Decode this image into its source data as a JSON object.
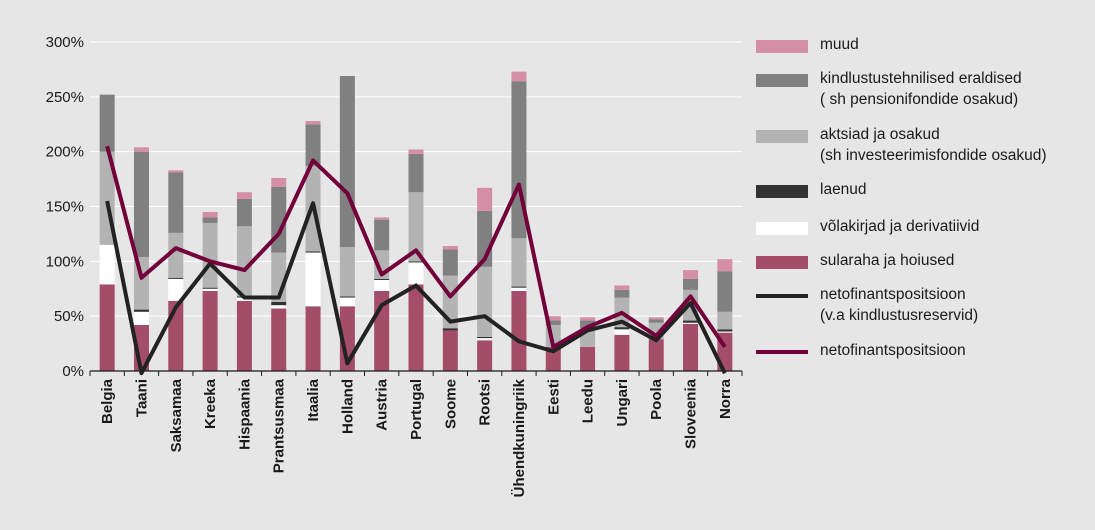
{
  "chart_data": {
    "type": "bar",
    "stacked": true,
    "categories": [
      "Belgia",
      "Taani",
      "Saksamaa",
      "Kreeka",
      "Hispaania",
      "Prantsusmaa",
      "Itaalia",
      "Holland",
      "Austria",
      "Portugal",
      "Soome",
      "Rootsi",
      "Ühendkuningriik",
      "Eesti",
      "Leedu",
      "Ungari",
      "Poola",
      "Sloveenia",
      "Norra"
    ],
    "ylim": [
      0,
      300
    ],
    "yticks": [
      0,
      50,
      100,
      150,
      200,
      250,
      300
    ],
    "ytick_labels": [
      "0%",
      "50%",
      "100%",
      "150%",
      "200%",
      "250%",
      "300%"
    ],
    "grid": true,
    "legend_position": "right",
    "series": [
      {
        "name": "sularaha ja hoiused",
        "color": "#a34d68",
        "values": [
          79,
          42,
          64,
          73,
          64,
          57,
          59,
          59,
          73,
          79,
          37,
          28,
          73,
          22,
          22,
          33,
          29,
          43,
          35
        ]
      },
      {
        "name": "võlakirjad ja derivatiivid",
        "color": "#ffffff",
        "values": [
          36,
          12,
          20,
          2,
          3,
          3,
          49,
          8,
          10,
          20,
          0,
          2,
          3,
          0,
          0,
          5,
          0,
          1,
          1
        ]
      },
      {
        "name": "laenud",
        "color": "#333333",
        "values": [
          0,
          2,
          1,
          1,
          1,
          3,
          1,
          1,
          1,
          1,
          2,
          1,
          1,
          0,
          0,
          2,
          0,
          2,
          2
        ]
      },
      {
        "name": "aktsiad ja osakud\n(sh investeerimisfondide osakud)",
        "color": "#b3b3b3",
        "values": [
          85,
          48,
          41,
          59,
          64,
          45,
          78,
          45,
          26,
          63,
          48,
          64,
          44,
          20,
          17,
          27,
          15,
          28,
          16
        ]
      },
      {
        "name": "kindlustustehnilised eraldised\n( sh pensionifondide osakud)",
        "color": "#808080",
        "values": [
          52,
          96,
          55,
          5,
          25,
          60,
          38,
          156,
          28,
          35,
          24,
          51,
          143,
          4,
          7,
          7,
          3,
          10,
          37
        ]
      },
      {
        "name": "muud",
        "color": "#d48fa6",
        "values": [
          0,
          4,
          2,
          5,
          6,
          8,
          3,
          0,
          2,
          4,
          3,
          21,
          9,
          4,
          3,
          4,
          2,
          8,
          11
        ]
      }
    ],
    "lines": [
      {
        "name": "netofinantspositsioon\n(v.a kindlustusreservid)",
        "color": "#222222",
        "values": [
          155,
          -2,
          58,
          98,
          67,
          67,
          153,
          7,
          60,
          78,
          45,
          50,
          27,
          18,
          37,
          45,
          28,
          62,
          -2
        ]
      },
      {
        "name": "netofinantspositsioon",
        "color": "#72003a",
        "values": [
          205,
          85,
          112,
          100,
          92,
          125,
          192,
          162,
          88,
          110,
          68,
          102,
          170,
          22,
          40,
          53,
          32,
          68,
          22
        ]
      }
    ]
  },
  "legend": [
    {
      "label": "muud",
      "color": "#d48fa6",
      "kind": "bar"
    },
    {
      "label": "kindlustustehnilised eraldised\n( sh pensionifondide osakud)",
      "color": "#808080",
      "kind": "bar"
    },
    {
      "label": "aktsiad ja osakud\n(sh investeerimisfondide osakud)",
      "color": "#b3b3b3",
      "kind": "bar"
    },
    {
      "label": "laenud",
      "color": "#333333",
      "kind": "bar"
    },
    {
      "label": "võlakirjad ja derivatiivid",
      "color": "#ffffff",
      "kind": "bar"
    },
    {
      "label": "sularaha ja hoiused",
      "color": "#a34d68",
      "kind": "bar"
    },
    {
      "label": "netofinantspositsioon\n(v.a kindlustusreservid)",
      "color": "#222222",
      "kind": "line"
    },
    {
      "label": "netofinantspositsioon",
      "color": "#72003a",
      "kind": "line"
    }
  ]
}
